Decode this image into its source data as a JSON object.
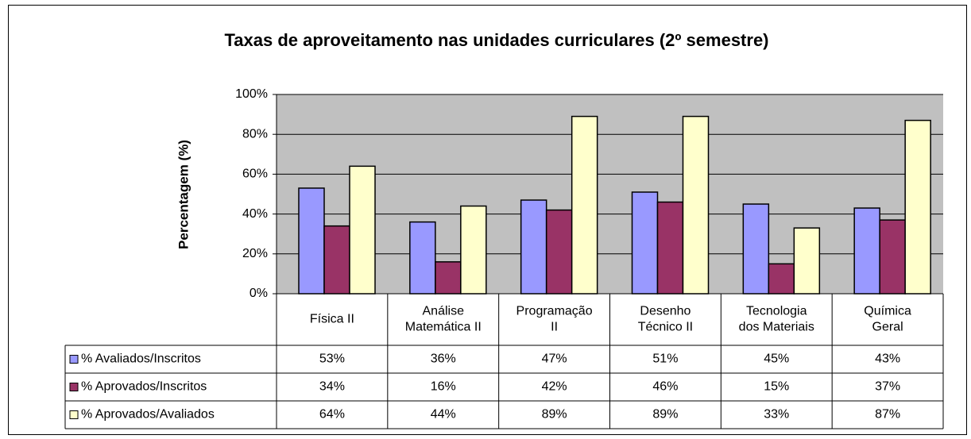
{
  "chart_data": {
    "type": "bar",
    "title": "Taxas de aproveitamento nas unidades curriculares (2º semestre)",
    "y_label": "Percentagem (%)",
    "categories": [
      [
        "Física II"
      ],
      [
        "Análise",
        "Matemática II"
      ],
      [
        "Programação",
        "II"
      ],
      [
        "Desenho",
        "Técnico II"
      ],
      [
        "Tecnologia",
        "dos Materiais"
      ],
      [
        "Química",
        "Geral"
      ]
    ],
    "series": [
      {
        "name": "% Avaliados/Inscritos",
        "color": "#9999ff",
        "values": [
          53,
          36,
          47,
          51,
          45,
          43
        ],
        "value_labels": [
          "53%",
          "36%",
          "47%",
          "51%",
          "45%",
          "43%"
        ]
      },
      {
        "name": "% Aprovados/Inscritos",
        "color": "#993366",
        "values": [
          34,
          16,
          42,
          46,
          15,
          37
        ],
        "value_labels": [
          "34%",
          "16%",
          "42%",
          "46%",
          "15%",
          "37%"
        ]
      },
      {
        "name": "% Aprovados/Avaliados",
        "color": "#ffffcc",
        "values": [
          64,
          44,
          89,
          89,
          33,
          87
        ],
        "value_labels": [
          "64%",
          "44%",
          "89%",
          "89%",
          "33%",
          "87%"
        ]
      }
    ],
    "ylim": [
      0,
      100
    ],
    "yticks": [
      {
        "value": 0,
        "label": "0%"
      },
      {
        "value": 20,
        "label": "20%"
      },
      {
        "value": 40,
        "label": "40%"
      },
      {
        "value": 60,
        "label": "60%"
      },
      {
        "value": 80,
        "label": "80%"
      },
      {
        "value": 100,
        "label": "100%"
      }
    ],
    "grid": true,
    "plot_background": "#c0c0c0"
  }
}
